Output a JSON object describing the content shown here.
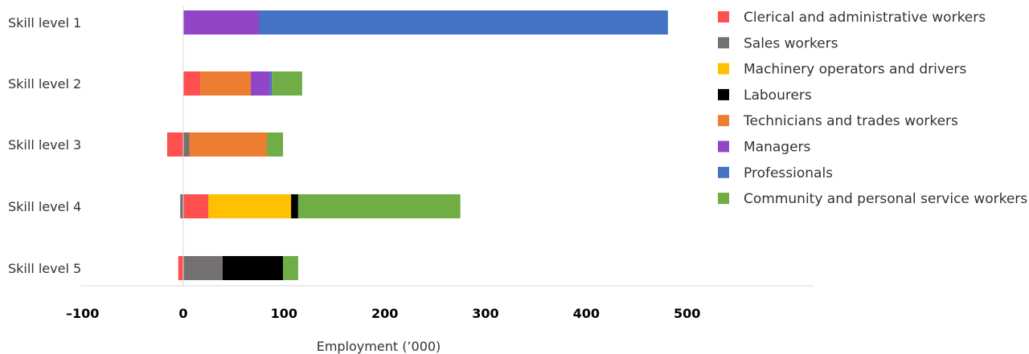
{
  "chart_data": {
    "type": "bar",
    "orientation": "horizontal",
    "stacked": true,
    "title": "",
    "xlabel": "Employment (’000)",
    "ylabel": "",
    "xlim": [
      -100,
      600
    ],
    "xticks": [
      -100,
      0,
      100,
      200,
      300,
      400,
      500
    ],
    "xtick_labels": [
      "–100",
      "0",
      "100",
      "200",
      "300",
      "400",
      "500"
    ],
    "categories": [
      "Skill level 1",
      "Skill level 2",
      "Skill level 3",
      "Skill level 4",
      "Skill level 5"
    ],
    "grid": false,
    "legend_position": "right",
    "series": [
      {
        "name": "Clerical and administrative workers",
        "color": "#FF5050",
        "values": [
          0,
          17,
          -16,
          25,
          -5
        ]
      },
      {
        "name": "Sales workers",
        "color": "#767171",
        "values": [
          0,
          0,
          6,
          -3,
          39
        ]
      },
      {
        "name": "Machinery operators and drivers",
        "color": "#FFC000",
        "values": [
          0,
          0,
          0,
          82,
          0
        ]
      },
      {
        "name": "Labourers",
        "color": "#000000",
        "values": [
          0,
          0,
          0,
          7,
          60
        ]
      },
      {
        "name": "Technicians and trades workers",
        "color": "#ED7D31",
        "values": [
          0,
          50,
          77,
          0,
          0
        ]
      },
      {
        "name": "Managers",
        "color": "#9146C8",
        "values": [
          75,
          19,
          0,
          0,
          0
        ]
      },
      {
        "name": "Professionals",
        "color": "#4472C4",
        "values": [
          406,
          2,
          0,
          0,
          0
        ]
      },
      {
        "name": "Community and personal service workers",
        "color": "#70AD47",
        "values": [
          0,
          30,
          16,
          161,
          15
        ]
      }
    ]
  }
}
